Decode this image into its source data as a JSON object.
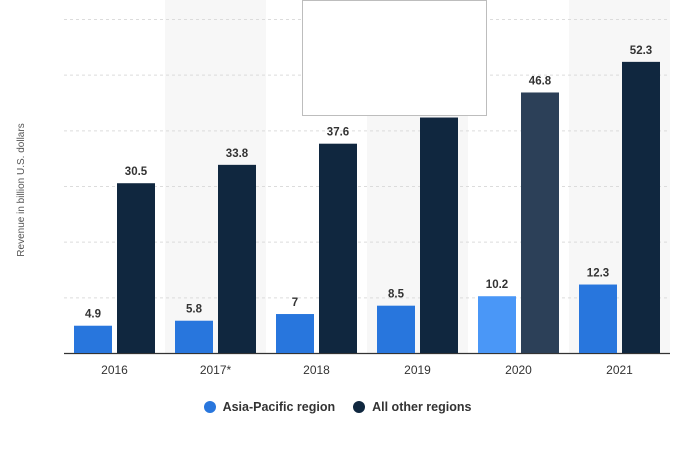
{
  "chart_data": {
    "type": "bar",
    "categories": [
      "2016",
      "2017*",
      "2018",
      "2019",
      "2020",
      "2021"
    ],
    "series": [
      {
        "name": "Asia-Pacific region",
        "values": [
          4.9,
          5.8,
          7,
          8.5,
          10.2,
          12.3
        ],
        "color": "#2876dd"
      },
      {
        "name": "All other regions",
        "values": [
          30.5,
          33.8,
          37.6,
          42.3,
          46.8,
          52.3
        ],
        "color": "#10273f"
      }
    ],
    "data_labels": [
      [
        "4.9",
        "5.8",
        "7",
        "8.5",
        "10.2",
        "12.3"
      ],
      [
        "30.5",
        "33.8",
        "37.6",
        "",
        "46.8",
        "52.3"
      ]
    ],
    "highlighted_category_index": 4,
    "highlight_colors": [
      "#4a97f7",
      "#2c4058"
    ],
    "xlabel": "",
    "ylabel": "Revenue in billion U.S. dollars",
    "ylim": [
      0,
      60
    ],
    "y_gridlines": [
      0,
      10,
      20,
      30,
      40,
      50,
      60
    ],
    "grid": true,
    "alternate_column_shading": true,
    "legend_position": "bottom"
  }
}
